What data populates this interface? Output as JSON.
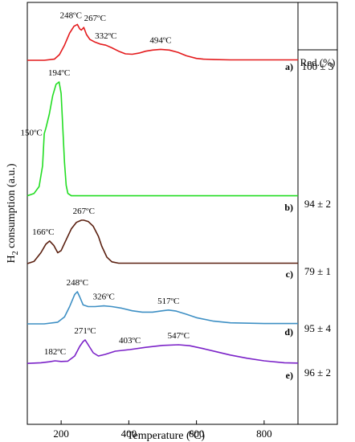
{
  "chart_data": {
    "type": "line",
    "xlabel": "Temperature (ºC)",
    "ylabel": "H2 consumption (a.u.)",
    "ylabel_main": "H",
    "ylabel_sub": "2",
    "ylabel_rest": " consumption (a.u.)",
    "xlim": [
      100,
      900
    ],
    "xticks": [
      200,
      400,
      600,
      800
    ],
    "xtick_labels": [
      "200",
      "400",
      "600",
      "800"
    ],
    "red_header": "Red.(%)",
    "colors": {
      "a": "#e41a1c",
      "b": "#22dd22",
      "c": "#5a1f0f",
      "d": "#3d8fc4",
      "e": "#7b22c8"
    },
    "series": [
      {
        "panel": "a)",
        "reduction": "100 ± 3",
        "x": [
          100,
          150,
          180,
          195,
          210,
          225,
          238,
          248,
          255,
          260,
          267,
          275,
          285,
          300,
          315,
          332,
          350,
          370,
          390,
          410,
          430,
          450,
          470,
          494,
          520,
          545,
          570,
          600,
          620,
          650,
          700,
          800,
          900
        ],
        "y": [
          0,
          0,
          0.03,
          0.15,
          0.4,
          0.72,
          0.9,
          0.95,
          0.83,
          0.8,
          0.87,
          0.68,
          0.55,
          0.48,
          0.43,
          0.4,
          0.33,
          0.24,
          0.17,
          0.16,
          0.19,
          0.24,
          0.27,
          0.29,
          0.27,
          0.21,
          0.12,
          0.05,
          0.03,
          0.02,
          0.01,
          0.01,
          0.01
        ],
        "peaks": [
          {
            "x": 248,
            "label": "248ºC"
          },
          {
            "x": 267,
            "label": "267ºC"
          },
          {
            "x": 332,
            "label": "332ºC"
          },
          {
            "x": 494,
            "label": "494ºC"
          }
        ]
      },
      {
        "panel": "b)",
        "reduction": "94 ± 2",
        "x": [
          100,
          120,
          135,
          145,
          150,
          155,
          165,
          175,
          185,
          194,
          200,
          205,
          210,
          215,
          220,
          230,
          900
        ],
        "y": [
          0.01,
          0.03,
          0.09,
          0.27,
          0.55,
          0.6,
          0.72,
          0.88,
          0.98,
          1.0,
          0.9,
          0.6,
          0.3,
          0.1,
          0.03,
          0.01,
          0.01
        ],
        "peaks": [
          {
            "x": 150,
            "label": "150ºC"
          },
          {
            "x": 194,
            "label": "194ºC"
          }
        ]
      },
      {
        "panel": "c)",
        "reduction": "79 ± 1",
        "x": [
          100,
          120,
          140,
          155,
          166,
          178,
          190,
          200,
          215,
          230,
          245,
          260,
          267,
          280,
          295,
          310,
          320,
          335,
          350,
          370,
          900
        ],
        "y": [
          0.0,
          0.05,
          0.25,
          0.45,
          0.52,
          0.42,
          0.25,
          0.3,
          0.55,
          0.8,
          0.95,
          1.0,
          1.0,
          0.97,
          0.86,
          0.63,
          0.4,
          0.15,
          0.04,
          0.01,
          0.01
        ],
        "peaks": [
          {
            "x": 166,
            "label": "166ºC"
          },
          {
            "x": 267,
            "label": "267ºC"
          }
        ]
      },
      {
        "panel": "d)",
        "reduction": "95 ± 4",
        "x": [
          100,
          150,
          190,
          210,
          225,
          240,
          248,
          255,
          265,
          280,
          300,
          326,
          350,
          380,
          410,
          440,
          470,
          500,
          517,
          540,
          570,
          600,
          650,
          700,
          800,
          900
        ],
        "y": [
          0.0,
          0.0,
          0.05,
          0.2,
          0.5,
          0.85,
          0.93,
          0.78,
          0.55,
          0.5,
          0.5,
          0.52,
          0.5,
          0.45,
          0.38,
          0.34,
          0.34,
          0.38,
          0.4,
          0.37,
          0.28,
          0.18,
          0.08,
          0.03,
          0.01,
          0.01
        ],
        "peaks": [
          {
            "x": 248,
            "label": "248ºC"
          },
          {
            "x": 326,
            "label": "326ºC"
          },
          {
            "x": 517,
            "label": "517ºC"
          }
        ]
      },
      {
        "panel": "e)",
        "reduction": "96 ± 2",
        "x": [
          100,
          140,
          165,
          182,
          200,
          220,
          240,
          255,
          265,
          271,
          280,
          295,
          310,
          330,
          360,
          403,
          450,
          500,
          547,
          580,
          620,
          660,
          700,
          750,
          800,
          860,
          900
        ],
        "y": [
          0.02,
          0.04,
          0.07,
          0.1,
          0.08,
          0.09,
          0.25,
          0.55,
          0.7,
          0.75,
          0.6,
          0.35,
          0.25,
          0.3,
          0.4,
          0.45,
          0.52,
          0.58,
          0.6,
          0.57,
          0.48,
          0.38,
          0.28,
          0.18,
          0.1,
          0.04,
          0.03
        ],
        "peaks": [
          {
            "x": 182,
            "label": "182ºC"
          },
          {
            "x": 271,
            "label": "271ºC"
          },
          {
            "x": 403,
            "label": "403ºC"
          },
          {
            "x": 547,
            "label": "547ºC"
          }
        ]
      }
    ]
  }
}
